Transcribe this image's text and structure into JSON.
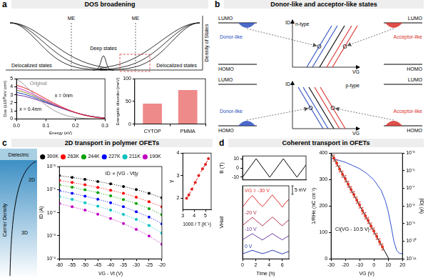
{
  "panels": [
    {
      "letter": "a",
      "title": "DOS broadening"
    },
    {
      "letter": "b",
      "title": "Donor-like and acceptor-like states"
    },
    {
      "letter": "c",
      "title": "2D transport in polymer OFETs"
    },
    {
      "letter": "d",
      "title": "Coherent transport in OFETs"
    }
  ],
  "dos_schematic": {
    "regions": [
      "Delocalized states",
      "Deep states",
      "Delocalized states"
    ],
    "mobility_edges": [
      "ME",
      "ME"
    ],
    "axis_label": "Density of States"
  },
  "states_diagram": {
    "rows": [
      "n-type",
      "p-type"
    ],
    "bands": [
      "LUMO",
      "HOMO"
    ],
    "donor": "Donor-like",
    "acceptor": "Acceptor-like",
    "x_axis": "VG",
    "y_axis": "ID"
  },
  "interface_schematic": {
    "layer": "Dielectric",
    "axis_label": "Carrier Density",
    "regions": [
      "2D",
      "3D"
    ]
  },
  "chart_data": [
    {
      "type": "line",
      "xlabel": "Energy (eV)",
      "ylabel": "Dos (x10²⁰/eV cm³)",
      "x": [
        0,
        0.025,
        0.05,
        0.075,
        0.1,
        0.125,
        0.15,
        0.175,
        0.2,
        0.225,
        0.25,
        0.275,
        0.3
      ],
      "series": [
        {
          "color": "#9a9a9a",
          "values": [
            5.0,
            4.3,
            3.4,
            2.5,
            1.7,
            1.1,
            0.65,
            0.35,
            0.18,
            0.08,
            0.03,
            0.01,
            0
          ]
        },
        {
          "color": "#e02020",
          "values": [
            4.2,
            3.9,
            3.5,
            3.0,
            2.5,
            2.0,
            1.55,
            1.15,
            0.8,
            0.5,
            0.3,
            0.15,
            0.07
          ]
        },
        {
          "color": "#d030c0",
          "values": [
            3.9,
            3.6,
            3.2,
            2.75,
            2.3,
            1.85,
            1.45,
            1.1,
            0.78,
            0.52,
            0.32,
            0.18,
            0.09
          ]
        },
        {
          "color": "#8a8a20",
          "values": [
            3.6,
            3.35,
            3.0,
            2.6,
            2.2,
            1.8,
            1.42,
            1.08,
            0.78,
            0.53,
            0.34,
            0.2,
            0.1
          ]
        },
        {
          "color": "#2040d0",
          "values": [
            3.3,
            3.1,
            2.8,
            2.45,
            2.1,
            1.75,
            1.4,
            1.07,
            0.78,
            0.54,
            0.35,
            0.21,
            0.11
          ]
        },
        {
          "color": "#7030a0",
          "values": [
            3.0,
            2.85,
            2.6,
            2.3,
            2.0,
            1.68,
            1.36,
            1.05,
            0.78,
            0.55,
            0.36,
            0.22,
            0.12
          ]
        }
      ],
      "xlim": [
        0,
        0.3
      ],
      "xticks": [
        {
          "value": 0,
          "label": "0.0"
        },
        0.1,
        0.2,
        0.3
      ],
      "ylim": [
        0,
        5
      ],
      "yticks": [
        0,
        1,
        2,
        3,
        4,
        5
      ],
      "grid": false,
      "marker": "none",
      "line_style": "solid",
      "annotations": [
        {
          "text": "Original",
          "x": 0.045,
          "y": 4.4,
          "color": "#808080"
        },
        {
          "text": "x = 0nm",
          "x": 0.13,
          "y": 2.9,
          "color": "#000000"
        },
        {
          "text": "x = 0.4nm",
          "x": 0.01,
          "y": 1.2,
          "color": "#000000"
        }
      ]
    },
    {
      "type": "bar",
      "ylabel": "Energetic disorder (meV)",
      "categories": [
        "CYTOP",
        "PMMA"
      ],
      "values": [
        45,
        75
      ],
      "color": "#ef8a8a",
      "ylim": [
        0,
        100
      ],
      "yticks": [
        0,
        50,
        100
      ],
      "grid": false
    },
    {
      "type": "line",
      "xlabel": "VG - Vt (V)",
      "ylabel": "ID (A)",
      "log": "y",
      "x": [
        -60,
        -55,
        -50,
        -45,
        -40,
        -35,
        -30,
        -25,
        -20
      ],
      "series": [
        {
          "name": "300K",
          "color": "#000000",
          "values": [
            4e-06,
            3.36e-06,
            2.78e-06,
            2.25e-06,
            1.78e-06,
            1.36e-06,
            1e-06,
            6.9e-07,
            4.4e-07
          ]
        },
        {
          "name": "263K",
          "color": "#ff0000",
          "values": [
            2.5e-06,
            2.03e-06,
            1.61e-06,
            1.25e-06,
            9.4e-07,
            6.9e-07,
            4.7e-07,
            3e-07,
            1.8e-07
          ]
        },
        {
          "name": "244K",
          "color": "#00a000",
          "values": [
            1.6e-06,
            1.27e-06,
            9.8e-07,
            7.4e-07,
            5.4e-07,
            3.7e-07,
            2.5e-07,
            1.5e-07,
            8.2e-08
          ]
        },
        {
          "name": "227K",
          "color": "#0000ff",
          "values": [
            9e-07,
            6.9e-07,
            5.2e-07,
            3.8e-07,
            2.7e-07,
            1.8e-07,
            1.1e-07,
            6.5e-08,
            3.3e-08
          ]
        },
        {
          "name": "211K",
          "color": "#00c0c0",
          "values": [
            5e-07,
            3.75e-07,
            2.7e-07,
            1.9e-07,
            1.3e-07,
            8.5e-08,
            5.1e-08,
            2.8e-08,
            1.3e-08
          ]
        },
        {
          "name": "190K",
          "color": "#c000c0",
          "values": [
            2.5e-07,
            1.8e-07,
            1.3e-07,
            8.6e-08,
            5.6e-08,
            3.4e-08,
            1.9e-08,
            9.8e-09,
            4.3e-09
          ]
        }
      ],
      "xlim": [
        -60,
        -20
      ],
      "xticks": [
        -60,
        -55,
        -50,
        -45,
        -40,
        -35,
        -30,
        -25,
        -20
      ],
      "ylim": [
        1e-09,
        1e-05
      ],
      "yticks": [
        {
          "value": 1e-09,
          "label": "10⁻⁹"
        },
        {
          "value": 1e-08,
          "label": "10⁻⁸"
        },
        {
          "value": 1e-07,
          "label": "10⁻⁷"
        },
        {
          "value": 1e-06,
          "label": "10⁻⁶"
        },
        {
          "value": 1e-05,
          "label": "10⁻⁵"
        }
      ],
      "grid": false,
      "legend": "top",
      "marker": "circle",
      "line_style": "dotted",
      "annotations": [
        {
          "text": "ID ∝ |VG - Vt|γ",
          "x": -42,
          "y": 5e-06,
          "color": "#000000"
        }
      ]
    },
    {
      "type": "scatter",
      "xlabel": "1000 / T (K⁻¹)",
      "ylabel": "γ",
      "x": [
        3.33,
        3.53,
        3.8,
        4.1,
        4.4,
        4.74,
        5.0,
        5.26
      ],
      "values": [
        2.0,
        2.15,
        2.4,
        2.7,
        3.0,
        3.3,
        3.5,
        3.75
      ],
      "color": "#e02020",
      "xlim": [
        3,
        5.5
      ],
      "xticks": [
        3,
        4,
        5
      ],
      "ylim": [
        1.5,
        4
      ],
      "yticks": [
        2,
        3,
        4
      ],
      "grid": false,
      "marker": "circle",
      "line_style": "dashed"
    },
    {
      "type": "line",
      "ylabel": "B (T)",
      "x": [
        0,
        1.5,
        3,
        4.5,
        6,
        7
      ],
      "values": [
        -10,
        10,
        -10,
        10,
        -10,
        3.3
      ],
      "color": "#000000",
      "xlim": [
        0,
        7
      ],
      "ylim": [
        -13,
        13
      ],
      "yticks": [
        -10,
        0,
        10
      ],
      "grid": false,
      "marker": "none",
      "line_style": "solid",
      "tick_labels": "y"
    },
    {
      "type": "line",
      "xlabel": "Time (h)",
      "ylabel": "VHall",
      "x": [
        0,
        0.5,
        1,
        1.5,
        2,
        2.5,
        3,
        3.5,
        4,
        4.5,
        5,
        5.5,
        6,
        6.5,
        7
      ],
      "series": [
        {
          "name": "VG = -30 V",
          "color": "#e02a2a",
          "values": [
            27.5,
            30.0,
            32.4,
            34.3,
            32.0,
            29.6,
            27.8,
            29.9,
            32.3,
            34.6,
            32.2,
            30.0,
            27.4,
            30.1,
            32.0
          ]
        },
        {
          "name": "-20 V",
          "color": "#b0304a",
          "values": [
            16.6,
            18.3,
            19.9,
            21.4,
            19.7,
            18.1,
            16.4,
            18.2,
            19.8,
            21.6,
            20.0,
            18.0,
            16.5,
            18.3,
            19.9
          ]
        },
        {
          "name": "-10 V",
          "color": "#6a3a9a",
          "values": [
            8.3,
            9.5,
            10.7,
            11.8,
            10.5,
            9.3,
            8.1,
            9.4,
            10.6,
            11.9,
            10.6,
            9.4,
            8.2,
            9.5,
            10.5
          ]
        },
        {
          "name": "0 V",
          "color": "#2a3ab0",
          "values": [
            0.0,
            0.6,
            1.4,
            2.0,
            1.3,
            0.7,
            0.1,
            0.6,
            1.3,
            2.1,
            1.4,
            0.6,
            -0.1,
            0.7,
            1.3
          ]
        }
      ],
      "xlim": [
        0,
        7
      ],
      "xticks": [
        0,
        2,
        4,
        6
      ],
      "ylim": [
        -3,
        40
      ],
      "grid": false,
      "marker": "none",
      "line_style": "solid",
      "tick_labels": "x",
      "scale_bar": {
        "value": 5,
        "label": "5 mV"
      }
    },
    {
      "type": "scatter",
      "xlabel": "VG (V)",
      "ylabel": "1/RHe (nC cm⁻²)",
      "y2label": "|ID| (A)",
      "log": "y2",
      "series": [
        {
          "color": "#e03020",
          "marker": "circle",
          "line_style": "none",
          "x": [
            -28,
            -26,
            -24,
            -22,
            -20,
            -18,
            -16,
            -14,
            -12,
            -10,
            -8,
            -6,
            -4,
            -2,
            0,
            2,
            4,
            6
          ],
          "values": [
            381,
            362,
            340,
            320,
            303,
            282,
            262,
            243,
            222,
            204,
            182,
            163,
            145,
            124,
            105,
            85,
            64,
            45
          ],
          "errors": [
            12,
            12,
            12,
            12,
            12,
            12,
            12,
            12,
            12,
            12,
            12,
            12,
            12,
            12,
            12,
            12,
            12,
            12
          ]
        },
        {
          "color": "#000000",
          "marker": "none",
          "line_style": "solid",
          "x": [
            -30,
            10.5
          ],
          "values": [
            400,
            0
          ]
        },
        {
          "color": "#3050d0",
          "marker": "none",
          "line_style": "solid",
          "axis": "y2",
          "x": [
            -30,
            -25,
            -20,
            -15,
            -10,
            -5,
            0,
            5,
            8,
            10,
            12,
            14,
            16,
            18,
            20
          ],
          "values": [
            5e-06,
            4e-06,
            3e-06,
            2e-06,
            1.3e-06,
            7e-07,
            3e-07,
            8e-08,
            2e-08,
            5e-09,
            8e-10,
            1e-10,
            3e-11,
            2e-11,
            2e-11
          ]
        }
      ],
      "xlim": [
        -30,
        20
      ],
      "xticks": [
        -30,
        -20,
        -10,
        0,
        10,
        20
      ],
      "ylim": [
        0,
        400
      ],
      "yticks": [
        0,
        100,
        200,
        300,
        400
      ],
      "y2lim": [
        1e-11,
        1e-05
      ],
      "y2ticks": [
        {
          "value": 1e-11,
          "label": "10⁻¹¹"
        },
        {
          "value": 1e-10,
          "label": "10⁻¹⁰"
        },
        {
          "value": 1e-09,
          "label": "10⁻⁹"
        },
        {
          "value": 1e-08,
          "label": "10⁻⁸"
        },
        {
          "value": 1e-07,
          "label": "10⁻⁷"
        },
        {
          "value": 1e-06,
          "label": "10⁻⁶"
        },
        {
          "value": 1e-05,
          "label": "10⁻⁵"
        }
      ],
      "grid": false,
      "annotations": [
        {
          "text": "Ci(VG - 10.5 V)",
          "x": -27,
          "y": 110,
          "color": "#000000"
        }
      ]
    }
  ]
}
